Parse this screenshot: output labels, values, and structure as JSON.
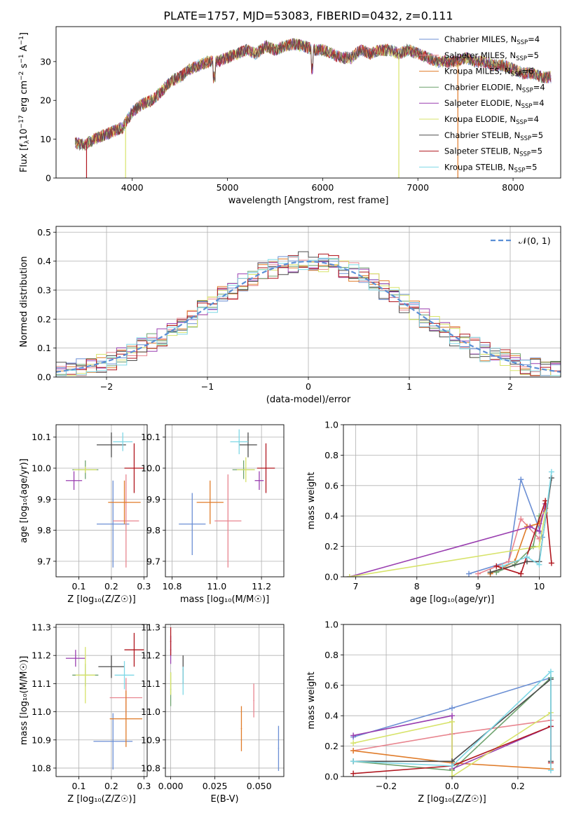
{
  "figure_title": "PLATE=1757, MJD=53083, FIBERID=0432, z=0.111",
  "models": [
    {
      "name": "Chabrier MILES",
      "nssp": "4",
      "color": "#6b8fd4"
    },
    {
      "name": "Salpeter MILES",
      "nssp": "5",
      "color": "#e8858f"
    },
    {
      "name": "Kroupa MILES",
      "nssp": "6",
      "color": "#e07c2a"
    },
    {
      "name": "Chabrier ELODIE",
      "nssp": "4",
      "color": "#6fa36f"
    },
    {
      "name": "Salpeter ELODIE",
      "nssp": "4",
      "color": "#9a3fb0"
    },
    {
      "name": "Kroupa ELODIE",
      "nssp": "4",
      "color": "#d7e36a"
    },
    {
      "name": "Chabrier STELIB",
      "nssp": "5",
      "color": "#4d4d4d"
    },
    {
      "name": "Salpeter STELIB",
      "nssp": "5",
      "color": "#b0171f"
    },
    {
      "name": "Kroupa STELIB",
      "nssp": "5",
      "color": "#7fd8e6"
    }
  ],
  "chart_data": [
    {
      "id": "spectrum",
      "type": "line",
      "xlabel": "wavelength [Angstrom, rest frame]",
      "ylabel": "Flux [f",
      "xlim": [
        3200,
        8500
      ],
      "ylim": [
        0,
        39
      ],
      "xticks": [
        4000,
        5000,
        6000,
        7000,
        8000
      ],
      "yticks": [
        0,
        10,
        20,
        30
      ],
      "grid": false,
      "legend": "top-right",
      "continuum": [
        [
          3400,
          9
        ],
        [
          3500,
          8.5
        ],
        [
          3600,
          10
        ],
        [
          3700,
          11
        ],
        [
          3800,
          12
        ],
        [
          3900,
          13
        ],
        [
          4000,
          17
        ],
        [
          4100,
          19
        ],
        [
          4200,
          20
        ],
        [
          4300,
          22
        ],
        [
          4400,
          25
        ],
        [
          4500,
          26
        ],
        [
          4600,
          28
        ],
        [
          4700,
          29
        ],
        [
          4800,
          30
        ],
        [
          4900,
          30
        ],
        [
          5000,
          31
        ],
        [
          5100,
          32
        ],
        [
          5200,
          33
        ],
        [
          5300,
          32
        ],
        [
          5400,
          34
        ],
        [
          5500,
          33
        ],
        [
          5600,
          34
        ],
        [
          5700,
          34.5
        ],
        [
          5800,
          34
        ],
        [
          5900,
          33
        ],
        [
          6000,
          33
        ],
        [
          6100,
          32
        ],
        [
          6200,
          31
        ],
        [
          6300,
          31
        ],
        [
          6400,
          33
        ],
        [
          6500,
          32
        ],
        [
          6600,
          33
        ],
        [
          6700,
          33
        ],
        [
          6800,
          32
        ],
        [
          6900,
          33
        ],
        [
          7000,
          32
        ],
        [
          7100,
          31
        ],
        [
          7200,
          30
        ],
        [
          7300,
          30
        ],
        [
          7400,
          30
        ],
        [
          7500,
          31
        ],
        [
          7600,
          30
        ],
        [
          7700,
          30
        ],
        [
          7800,
          29
        ],
        [
          7900,
          29
        ],
        [
          8000,
          28
        ],
        [
          8100,
          27
        ],
        [
          8200,
          27
        ],
        [
          8300,
          26
        ],
        [
          8400,
          26
        ]
      ],
      "dropouts": [
        [
          3520,
          "#b0171f"
        ],
        [
          3930,
          "#d7e36a"
        ],
        [
          6800,
          "#d7e36a"
        ],
        [
          7420,
          "#e07c2a"
        ]
      ]
    },
    {
      "id": "residuals",
      "type": "histogram",
      "xlabel": "(data-model)/error",
      "ylabel": "Normed distribution",
      "xlim": [
        -2.5,
        2.5
      ],
      "ylim": [
        0,
        0.52
      ],
      "xticks": [
        -2,
        -1,
        0,
        1,
        2
      ],
      "yticks": [
        0.0,
        0.1,
        0.2,
        0.3,
        0.4,
        0.5
      ],
      "grid": true,
      "legend": "top-right",
      "gaussian_label": "𝒩(0, 1)",
      "gaussian_color": "#5b8fd6",
      "bin_width": 0.1
    },
    {
      "id": "age_vs_Z",
      "type": "scatter",
      "xlabel": "Z [log₁₀(Z/Z☉)]",
      "ylabel": "age  [log₁₀(age/yr)]",
      "xlim": [
        0.03,
        0.31
      ],
      "ylim": [
        9.65,
        10.14
      ],
      "xticks": [
        0.1,
        0.2,
        0.3
      ],
      "yticks": [
        9.7,
        9.8,
        9.9,
        10.0,
        10.1
      ],
      "grid": true,
      "points": [
        {
          "x": 0.205,
          "y": 9.82,
          "xerr": 0.05,
          "yerr": 0.14
        },
        {
          "x": 0.245,
          "y": 9.83,
          "xerr": 0.04,
          "yerr": 0.15
        },
        {
          "x": 0.24,
          "y": 9.89,
          "xerr": 0.05,
          "yerr": 0.07
        },
        {
          "x": 0.12,
          "y": 9.995,
          "xerr": 0.04,
          "yerr": 0.03
        },
        {
          "x": 0.085,
          "y": 9.96,
          "xerr": 0.025,
          "yerr": 0.03
        },
        {
          "x": 0.12,
          "y": 9.995,
          "xerr": 0.035,
          "yerr": 0.01
        },
        {
          "x": 0.2,
          "y": 10.075,
          "xerr": 0.045,
          "yerr": 0.04
        },
        {
          "x": 0.27,
          "y": 10.0,
          "xerr": 0.03,
          "yerr": 0.08
        },
        {
          "x": 0.235,
          "y": 10.085,
          "xerr": 0.03,
          "yerr": 0.03
        }
      ]
    },
    {
      "id": "age_vs_mass",
      "type": "scatter",
      "xlabel": "mass [log₁₀(M/M☉)]",
      "ylabel": "",
      "xlim": [
        10.77,
        11.3
      ],
      "ylim": [
        9.65,
        10.14
      ],
      "xticks": [
        10.8,
        11.0,
        11.2
      ],
      "yticks": [
        9.7,
        9.8,
        9.9,
        10.0,
        10.1
      ],
      "grid": true,
      "points": [
        {
          "x": 10.89,
          "y": 9.82,
          "xerr": 0.06,
          "yerr": 0.1
        },
        {
          "x": 11.05,
          "y": 9.83,
          "xerr": 0.06,
          "yerr": 0.15
        },
        {
          "x": 10.97,
          "y": 9.89,
          "xerr": 0.06,
          "yerr": 0.07
        },
        {
          "x": 11.12,
          "y": 9.995,
          "xerr": 0.05,
          "yerr": 0.03
        },
        {
          "x": 11.19,
          "y": 9.96,
          "xerr": 0.02,
          "yerr": 0.03
        },
        {
          "x": 11.13,
          "y": 9.995,
          "xerr": 0.04,
          "yerr": 0.04
        },
        {
          "x": 11.14,
          "y": 10.075,
          "xerr": 0.04,
          "yerr": 0.04
        },
        {
          "x": 11.22,
          "y": 10.0,
          "xerr": 0.04,
          "yerr": 0.08
        },
        {
          "x": 11.1,
          "y": 10.085,
          "xerr": 0.04,
          "yerr": 0.04
        }
      ]
    },
    {
      "id": "weight_vs_age",
      "type": "line",
      "xlabel": "age  [log₁₀(age/yr)]",
      "ylabel": "mass weight",
      "xlim": [
        6.8,
        10.35
      ],
      "ylim": [
        0,
        1
      ],
      "xticks": [
        7,
        8,
        9,
        10
      ],
      "yticks": [
        0.0,
        0.2,
        0.4,
        0.6,
        0.8,
        1.0
      ],
      "grid": true,
      "series": [
        [
          [
            8.85,
            0.02
          ],
          [
            9.5,
            0.1
          ],
          [
            9.7,
            0.64
          ],
          [
            10.05,
            0.26
          ]
        ],
        [
          [
            9.0,
            0.02
          ],
          [
            9.5,
            0.1
          ],
          [
            9.7,
            0.38
          ],
          [
            10.0,
            0.25
          ]
        ],
        [
          [
            9.2,
            0.02
          ],
          [
            9.6,
            0.1
          ],
          [
            9.8,
            0.33
          ],
          [
            10.0,
            0.35
          ],
          [
            10.1,
            0.45
          ]
        ],
        [
          [
            9.3,
            0.03
          ],
          [
            9.6,
            0.08
          ],
          [
            9.9,
            0.2
          ],
          [
            10.0,
            0.4
          ]
        ],
        [
          [
            6.9,
            0.0
          ],
          [
            9.85,
            0.33
          ],
          [
            10.0,
            0.3
          ],
          [
            10.1,
            0.48
          ]
        ],
        [
          [
            6.9,
            0.0
          ],
          [
            10.0,
            0.2
          ],
          [
            10.1,
            0.42
          ]
        ],
        [
          [
            9.2,
            0.03
          ],
          [
            9.8,
            0.1
          ],
          [
            10.0,
            0.1
          ],
          [
            10.2,
            0.65
          ]
        ],
        [
          [
            9.3,
            0.07
          ],
          [
            9.7,
            0.02
          ],
          [
            10.1,
            0.5
          ],
          [
            10.2,
            0.09
          ]
        ],
        [
          [
            9.4,
            0.07
          ],
          [
            9.8,
            0.13
          ],
          [
            10.0,
            0.08
          ],
          [
            10.2,
            0.69
          ]
        ]
      ]
    },
    {
      "id": "mass_vs_Z",
      "type": "scatter",
      "xlabel": "Z [log₁₀(Z/Z☉)]",
      "ylabel": "mass [log₁₀(M/M☉)]",
      "xlim": [
        0.03,
        0.31
      ],
      "ylim": [
        10.77,
        11.31
      ],
      "xticks": [
        0.1,
        0.2,
        0.3
      ],
      "yticks": [
        10.8,
        10.9,
        11.0,
        11.1,
        11.2,
        11.3
      ],
      "grid": true,
      "points": [
        {
          "x": 0.205,
          "y": 10.895,
          "xerr": 0.06,
          "yerr": 0.1
        },
        {
          "x": 0.245,
          "y": 11.05,
          "xerr": 0.05,
          "yerr": 0.07
        },
        {
          "x": 0.245,
          "y": 10.975,
          "xerr": 0.05,
          "yerr": 0.1
        },
        {
          "x": 0.12,
          "y": 11.13,
          "xerr": 0.04,
          "yerr": 0.04
        },
        {
          "x": 0.09,
          "y": 11.19,
          "xerr": 0.03,
          "yerr": 0.03
        },
        {
          "x": 0.12,
          "y": 11.13,
          "xerr": 0.03,
          "yerr": 0.1
        },
        {
          "x": 0.2,
          "y": 11.16,
          "xerr": 0.04,
          "yerr": 0.04
        },
        {
          "x": 0.27,
          "y": 11.22,
          "xerr": 0.03,
          "yerr": 0.06
        },
        {
          "x": 0.24,
          "y": 11.13,
          "xerr": 0.03,
          "yerr": 0.05
        }
      ]
    },
    {
      "id": "mass_vs_ebv",
      "type": "scatter",
      "xlabel": "E(B-V)",
      "ylabel": "",
      "xlim": [
        -0.003,
        0.064
      ],
      "ylim": [
        10.77,
        11.31
      ],
      "xticks": [
        0.0,
        0.025,
        0.05
      ],
      "yticks": [
        10.8,
        10.9,
        11.0,
        11.1,
        11.2,
        11.3
      ],
      "grid": true,
      "points": [
        {
          "x": 0.061,
          "y": 10.87,
          "xerr": 0,
          "yerr": 0.08
        },
        {
          "x": 0.047,
          "y": 11.04,
          "xerr": 0,
          "yerr": 0.06
        },
        {
          "x": 0.04,
          "y": 10.94,
          "xerr": 0,
          "yerr": 0.08
        },
        {
          "x": 0.0,
          "y": 11.08,
          "xerr": 0,
          "yerr": 0.06
        },
        {
          "x": 0.0,
          "y": 11.22,
          "xerr": 0,
          "yerr": 0.05
        },
        {
          "x": 0.0,
          "y": 11.1,
          "xerr": 0,
          "yerr": 0.04
        },
        {
          "x": 0.007,
          "y": 11.15,
          "xerr": 0,
          "yerr": 0.05
        },
        {
          "x": 0.0,
          "y": 11.25,
          "xerr": 0,
          "yerr": 0.05
        },
        {
          "x": 0.007,
          "y": 11.11,
          "xerr": 0,
          "yerr": 0.05
        }
      ]
    },
    {
      "id": "weight_vs_Z",
      "type": "line",
      "xlabel": "Z [log₁₀(Z/Z☉)]",
      "ylabel": "mass weight",
      "xlim": [
        -0.33,
        0.33
      ],
      "ylim": [
        0,
        1
      ],
      "xticks": [
        -0.2,
        0.0,
        0.2
      ],
      "yticks": [
        0.0,
        0.2,
        0.4,
        0.6,
        0.8,
        1.0
      ],
      "grid": true,
      "series": [
        [
          [
            -0.3,
            0.26
          ],
          [
            0.0,
            0.45
          ],
          [
            0.3,
            0.65
          ]
        ],
        [
          [
            -0.3,
            0.17
          ],
          [
            0.0,
            0.28
          ],
          [
            0.3,
            0.37
          ]
        ],
        [
          [
            -0.3,
            0.17
          ],
          [
            0.0,
            0.09
          ],
          [
            0.3,
            0.05
          ]
        ],
        [
          [
            -0.3,
            0.1
          ],
          [
            0.0,
            0.04
          ],
          [
            0.3,
            0.65
          ]
        ],
        [
          [
            -0.3,
            0.27
          ],
          [
            0.0,
            0.4
          ],
          [
            0.0,
            0.05
          ],
          [
            0.3,
            0.33
          ]
        ],
        [
          [
            -0.3,
            0.22
          ],
          [
            0.0,
            0.36
          ],
          [
            0.0,
            0.0
          ],
          [
            0.3,
            0.42
          ]
        ],
        [
          [
            -0.3,
            0.1
          ],
          [
            0.0,
            0.1
          ],
          [
            0.3,
            0.64
          ],
          [
            0.3,
            0.1
          ]
        ],
        [
          [
            -0.3,
            0.02
          ],
          [
            0.0,
            0.07
          ],
          [
            0.3,
            0.33
          ],
          [
            0.3,
            0.09
          ]
        ],
        [
          [
            -0.3,
            0.1
          ],
          [
            0.0,
            0.07
          ],
          [
            0.3,
            0.69
          ],
          [
            0.3,
            0.04
          ]
        ]
      ]
    }
  ]
}
